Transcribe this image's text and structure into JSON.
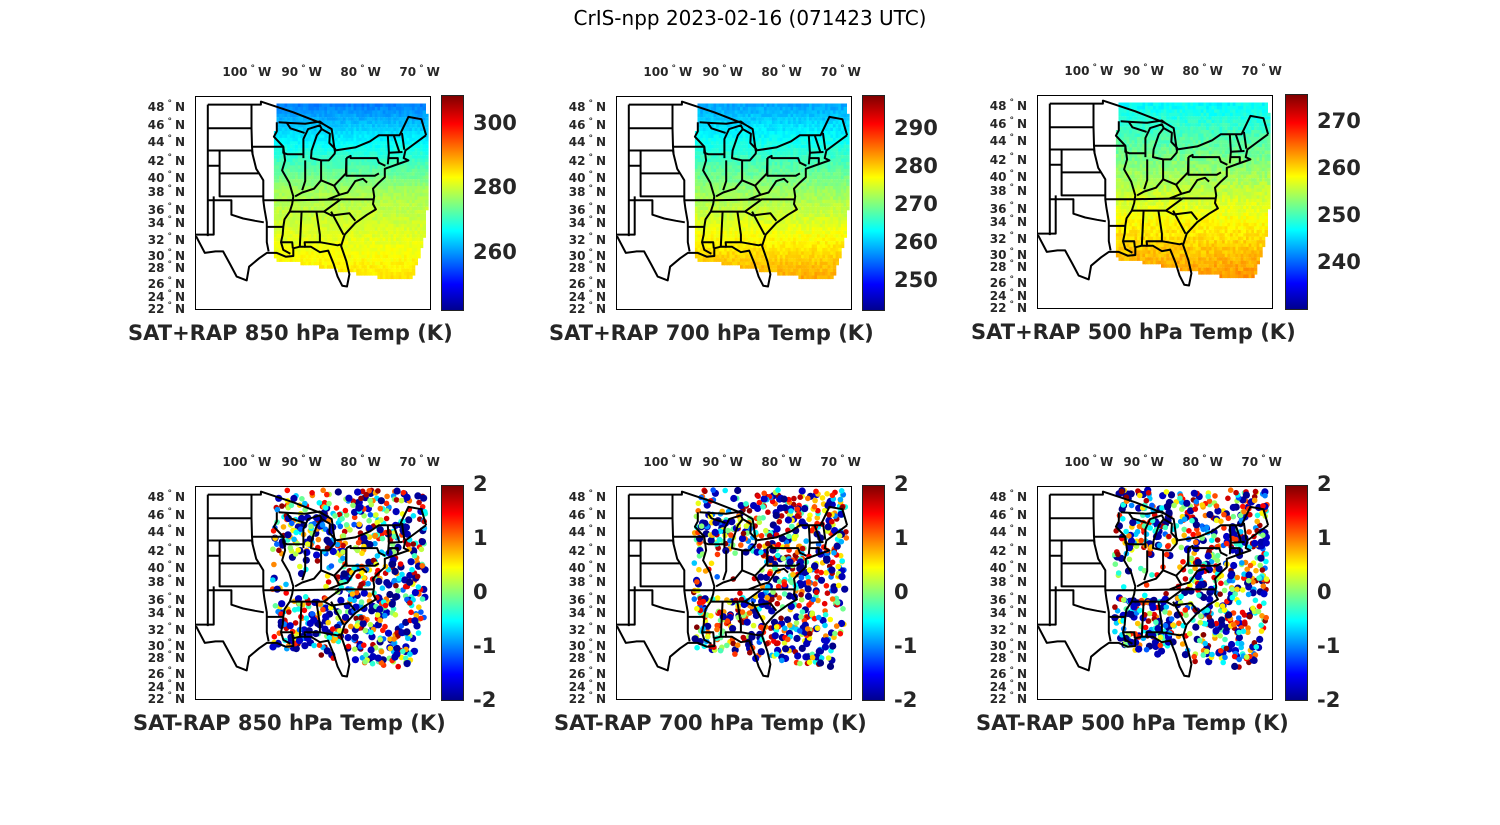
{
  "figure_title": "CrIS-npp 2023-02-16 (071423 UTC)",
  "chart_data": [
    {
      "type": "heatmap",
      "title": "SAT+RAP 850 hPa Temp (K)",
      "xlabel": "",
      "ylabel": "",
      "x_ticks": [
        "100° W",
        "90° W",
        "80° W",
        "70° W"
      ],
      "y_ticks": [
        "48° N",
        "46° N",
        "44° N",
        "42° N",
        "40° N",
        "38° N",
        "36° N",
        "34° N",
        "32° N",
        "30° N",
        "28° N",
        "26° N",
        "24° N",
        "22° N"
      ],
      "colorbar": {
        "colormap": "jet",
        "range": [
          242,
          309
        ],
        "ticks": [
          300,
          280,
          260
        ]
      },
      "field": "absolute",
      "gradient": {
        "north": 258,
        "mid": 278,
        "south": 286
      }
    },
    {
      "type": "heatmap",
      "title": "SAT+RAP 700 hPa Temp (K)",
      "xlabel": "",
      "ylabel": "",
      "x_ticks": [
        "100° W",
        "90° W",
        "80° W",
        "70° W"
      ],
      "y_ticks": [
        "48° N",
        "46° N",
        "44° N",
        "42° N",
        "40° N",
        "38° N",
        "36° N",
        "34° N",
        "32° N",
        "30° N",
        "28° N",
        "26° N",
        "24° N",
        "22° N"
      ],
      "colorbar": {
        "colormap": "jet",
        "range": [
          242,
          299
        ],
        "ticks": [
          290,
          280,
          270,
          260,
          250
        ]
      },
      "field": "absolute",
      "gradient": {
        "north": 258,
        "mid": 272,
        "south": 283
      }
    },
    {
      "type": "heatmap",
      "title": "SAT+RAP 500 hPa Temp (K)",
      "xlabel": "",
      "ylabel": "",
      "x_ticks": [
        "100° W",
        "90° W",
        "80° W",
        "70° W"
      ],
      "y_ticks": [
        "48° N",
        "46° N",
        "44° N",
        "42° N",
        "40° N",
        "38° N",
        "36° N",
        "34° N",
        "32° N",
        "30° N",
        "28° N",
        "26° N",
        "24° N",
        "22° N"
      ],
      "colorbar": {
        "colormap": "jet",
        "range": [
          230,
          276
        ],
        "ticks": [
          270,
          260,
          250,
          240
        ]
      },
      "field": "absolute",
      "gradient": {
        "north": 247,
        "mid": 256,
        "south": 264
      }
    },
    {
      "type": "heatmap",
      "title": "SAT-RAP 850 hPa Temp (K)",
      "xlabel": "",
      "ylabel": "",
      "x_ticks": [
        "100° W",
        "90° W",
        "80° W",
        "70° W"
      ],
      "y_ticks": [
        "48° N",
        "46° N",
        "44° N",
        "42° N",
        "40° N",
        "38° N",
        "36° N",
        "34° N",
        "32° N",
        "30° N",
        "28° N",
        "26° N",
        "24° N",
        "22° N"
      ],
      "colorbar": {
        "colormap": "jet",
        "range": [
          -2,
          2
        ],
        "ticks": [
          2,
          1,
          0,
          -1,
          -2
        ]
      },
      "field": "difference",
      "seed": 11
    },
    {
      "type": "heatmap",
      "title": "SAT-RAP 700 hPa Temp (K)",
      "xlabel": "",
      "ylabel": "",
      "x_ticks": [
        "100° W",
        "90° W",
        "80° W",
        "70° W"
      ],
      "y_ticks": [
        "48° N",
        "46° N",
        "44° N",
        "42° N",
        "40° N",
        "38° N",
        "36° N",
        "34° N",
        "32° N",
        "30° N",
        "28° N",
        "26° N",
        "24° N",
        "22° N"
      ],
      "colorbar": {
        "colormap": "jet",
        "range": [
          -2,
          2
        ],
        "ticks": [
          2,
          1,
          0,
          -1,
          -2
        ]
      },
      "field": "difference",
      "seed": 23
    },
    {
      "type": "heatmap",
      "title": "SAT-RAP 500 hPa Temp (K)",
      "xlabel": "",
      "ylabel": "",
      "x_ticks": [
        "100° W",
        "90° W",
        "80° W",
        "70° W"
      ],
      "y_ticks": [
        "48° N",
        "46° N",
        "44° N",
        "42° N",
        "40° N",
        "38° N",
        "36° N",
        "34° N",
        "32° N",
        "30° N",
        "28° N",
        "26° N",
        "24° N",
        "22° N"
      ],
      "colorbar": {
        "colormap": "jet",
        "range": [
          -2,
          2
        ],
        "ticks": [
          2,
          1,
          0,
          -1,
          -2
        ]
      },
      "field": "difference",
      "seed": 37
    }
  ]
}
